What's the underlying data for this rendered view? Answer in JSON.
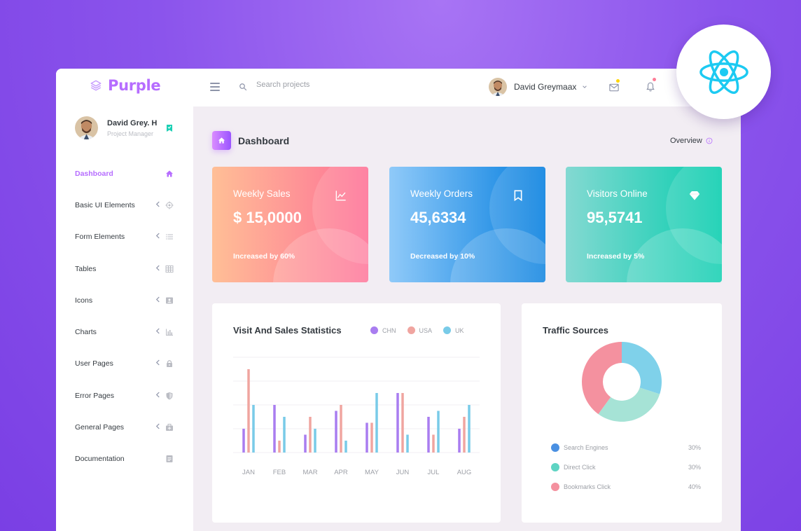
{
  "brand": {
    "name": "Purple"
  },
  "navbar": {
    "search_placeholder": "Search projects",
    "user_name": "David Greymaax"
  },
  "sidebar": {
    "profile": {
      "name": "David Grey. H",
      "role": "Project Manager"
    },
    "items": [
      {
        "label": "Dashboard",
        "icon": "home-icon",
        "active": true,
        "has_arrow": false
      },
      {
        "label": "Basic UI Elements",
        "icon": "crosshairs-icon",
        "active": false,
        "has_arrow": true
      },
      {
        "label": "Form Elements",
        "icon": "format-list-icon",
        "active": false,
        "has_arrow": true
      },
      {
        "label": "Tables",
        "icon": "table-icon",
        "active": false,
        "has_arrow": true
      },
      {
        "label": "Icons",
        "icon": "contacts-icon",
        "active": false,
        "has_arrow": true
      },
      {
        "label": "Charts",
        "icon": "chart-bar-icon",
        "active": false,
        "has_arrow": true
      },
      {
        "label": "User Pages",
        "icon": "lock-icon",
        "active": false,
        "has_arrow": true
      },
      {
        "label": "Error Pages",
        "icon": "security-icon",
        "active": false,
        "has_arrow": true
      },
      {
        "label": "General Pages",
        "icon": "medical-bag-icon",
        "active": false,
        "has_arrow": true
      },
      {
        "label": "Documentation",
        "icon": "file-document-icon",
        "active": false,
        "has_arrow": false
      }
    ]
  },
  "page": {
    "title": "Dashboard",
    "overview_label": "Overview"
  },
  "cards": [
    {
      "title": "Weekly Sales",
      "value": "$ 15,0000",
      "footer": "Increased by 60%",
      "icon": "chart-line-icon",
      "gradient": [
        "#ffbf96",
        "#fe7096"
      ]
    },
    {
      "title": "Weekly Orders",
      "value": "45,6334",
      "footer": "Decreased by 10%",
      "icon": "bookmark-outline-icon",
      "gradient": [
        "#90caf9",
        "#047edf"
      ]
    },
    {
      "title": "Visitors Online",
      "value": "95,5741",
      "footer": "Increased by 5%",
      "icon": "diamond-icon",
      "gradient": [
        "#84d9d2",
        "#07cdae"
      ]
    }
  ],
  "visit_panel": {
    "title": "Visit And Sales Statistics"
  },
  "traffic_panel": {
    "title": "Traffic Sources",
    "rows": [
      {
        "label": "Search Engines",
        "value": "30%",
        "color": "#4a90e2"
      },
      {
        "label": "Direct Click",
        "value": "30%",
        "color": "#5fd4c3"
      },
      {
        "label": "Bookmarks Click",
        "value": "40%",
        "color": "#f4919f"
      }
    ]
  },
  "chart_data": [
    {
      "type": "bar",
      "categories": [
        "JAN",
        "FEB",
        "MAR",
        "APR",
        "MAY",
        "JUN",
        "JUL",
        "AUG"
      ],
      "series": [
        {
          "name": "CHN",
          "color": "#a97df0",
          "values": [
            20,
            40,
            15,
            35,
            25,
            50,
            30,
            20
          ]
        },
        {
          "name": "USA",
          "color": "#f0a5a0",
          "values": [
            70,
            10,
            30,
            40,
            25,
            50,
            15,
            30
          ]
        },
        {
          "name": "UK",
          "color": "#79cbe8",
          "values": [
            40,
            30,
            20,
            10,
            50,
            15,
            35,
            40
          ]
        }
      ],
      "ylim": [
        0,
        80
      ],
      "grid": true,
      "legend": "top-right"
    },
    {
      "type": "pie",
      "donut": true,
      "labels": [
        "Search Engines",
        "Direct Click",
        "Bookmarks Click"
      ],
      "values": [
        30,
        30,
        40
      ],
      "colors": [
        "#7fd1ea",
        "#a6e3d6",
        "#f4919f"
      ]
    }
  ]
}
